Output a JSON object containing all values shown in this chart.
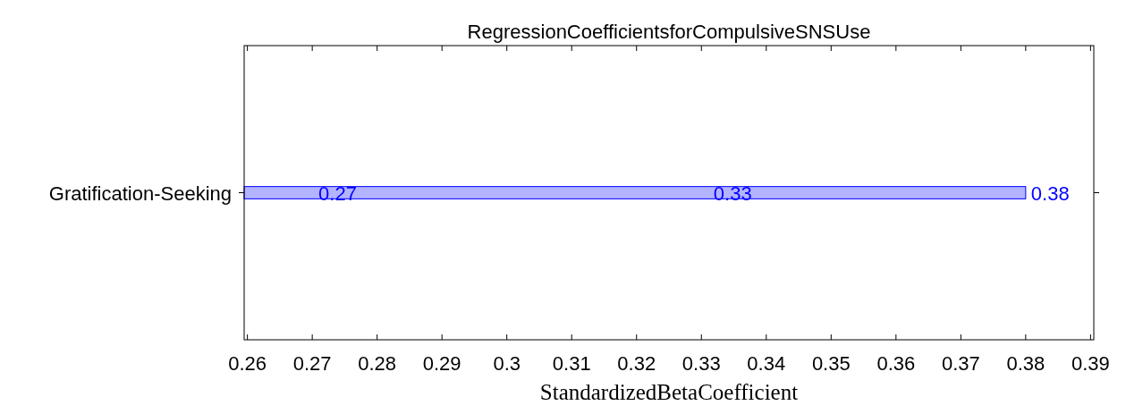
{
  "chart_data": {
    "type": "bar",
    "orientation": "horizontal",
    "title": "RegressionCoefficientsforCompulsiveSNSUse",
    "xlabel": "StandardizedBetaCoefficient",
    "categories": [
      "Gratification-Seeking"
    ],
    "series": [
      {
        "color": "#b3b3ff",
        "values": [
          0.38
        ]
      }
    ],
    "data_labels": true,
    "xlim": [
      0.2595,
      0.3905
    ],
    "xticks": [
      0.26,
      0.27,
      0.28,
      0.29,
      0.3,
      0.31,
      0.32,
      0.33,
      0.34,
      0.35,
      0.36,
      0.37,
      0.38,
      0.39
    ],
    "annotations": [
      "0.27",
      "0.33"
    ],
    "grid": false
  }
}
